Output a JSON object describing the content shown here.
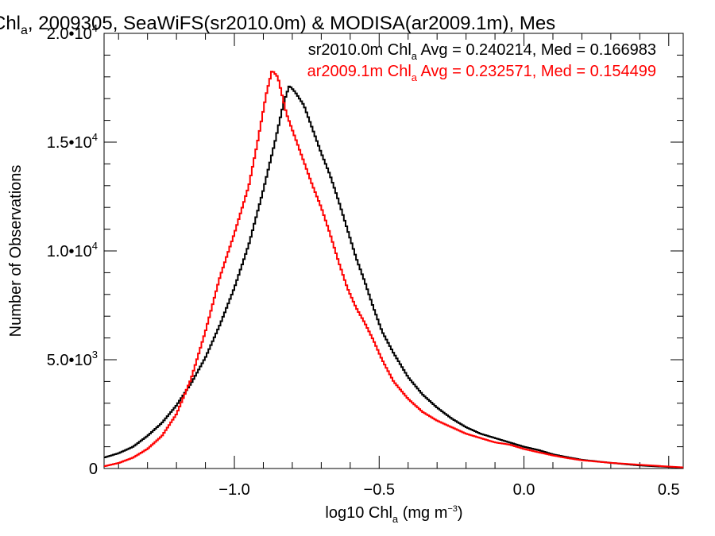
{
  "chart_data": {
    "type": "line",
    "title": {
      "prefix": "Chl",
      "prefix_sub": "a",
      "rest": ", 2009305, SeaWiFS(sr2010.0m) & MODISA(ar2009.1m), Mes"
    },
    "xlabel": {
      "main": "log10 Chl",
      "sub": "a",
      "unit_pre": " (mg m",
      "unit_sup": "−3",
      "unit_post": ")"
    },
    "ylabel": "Number of Observations",
    "xlim": [
      -1.45,
      0.55
    ],
    "ylim": [
      0,
      20000
    ],
    "grid": false,
    "legend_position": "top-right",
    "x_ticks": [
      {
        "value": -1.0,
        "label": "−1.0"
      },
      {
        "value": -0.5,
        "label": "−0.5"
      },
      {
        "value": 0.0,
        "label": "0.0"
      },
      {
        "value": 0.5,
        "label": "0.5"
      }
    ],
    "y_ticks": [
      {
        "value": 0,
        "mant": "0",
        "exp": ""
      },
      {
        "value": 5000,
        "mant": "5.0•10",
        "exp": "3"
      },
      {
        "value": 10000,
        "mant": "1.0•10",
        "exp": "4"
      },
      {
        "value": 15000,
        "mant": "1.5•10",
        "exp": "4"
      },
      {
        "value": 20000,
        "mant": "2.0•10",
        "exp": "4"
      }
    ],
    "series": [
      {
        "name": "sr2010.0m",
        "legend": {
          "pre": "sr2010.0m Chl",
          "sub": "a",
          "post": " Avg = 0.240214, Med = 0.166983"
        },
        "color": "#000000",
        "points": [
          [
            -1.45,
            500
          ],
          [
            -1.4,
            700
          ],
          [
            -1.35,
            1000
          ],
          [
            -1.3,
            1500
          ],
          [
            -1.25,
            2100
          ],
          [
            -1.2,
            2900
          ],
          [
            -1.15,
            3900
          ],
          [
            -1.1,
            5100
          ],
          [
            -1.05,
            6600
          ],
          [
            -1.0,
            8300
          ],
          [
            -0.95,
            10300
          ],
          [
            -0.9,
            12800
          ],
          [
            -0.86,
            15000
          ],
          [
            -0.83,
            16800
          ],
          [
            -0.81,
            17600
          ],
          [
            -0.79,
            17300
          ],
          [
            -0.76,
            16700
          ],
          [
            -0.73,
            15600
          ],
          [
            -0.7,
            14500
          ],
          [
            -0.67,
            13500
          ],
          [
            -0.64,
            12300
          ],
          [
            -0.61,
            11000
          ],
          [
            -0.58,
            9700
          ],
          [
            -0.55,
            8600
          ],
          [
            -0.52,
            7400
          ],
          [
            -0.49,
            6300
          ],
          [
            -0.45,
            5300
          ],
          [
            -0.4,
            4200
          ],
          [
            -0.35,
            3400
          ],
          [
            -0.3,
            2800
          ],
          [
            -0.25,
            2300
          ],
          [
            -0.2,
            1900
          ],
          [
            -0.15,
            1600
          ],
          [
            -0.1,
            1400
          ],
          [
            -0.05,
            1200
          ],
          [
            0.0,
            1000
          ],
          [
            0.05,
            850
          ],
          [
            0.1,
            650
          ],
          [
            0.15,
            520
          ],
          [
            0.2,
            400
          ],
          [
            0.3,
            260
          ],
          [
            0.4,
            140
          ],
          [
            0.5,
            70
          ],
          [
            0.55,
            40
          ]
        ]
      },
      {
        "name": "ar2009.1m",
        "legend": {
          "pre": "ar2009.1m Chl",
          "sub": "a",
          "post": " Avg = 0.232571, Med = 0.154499"
        },
        "color": "#ff0000",
        "points": [
          [
            -1.45,
            100
          ],
          [
            -1.4,
            250
          ],
          [
            -1.35,
            500
          ],
          [
            -1.3,
            900
          ],
          [
            -1.25,
            1500
          ],
          [
            -1.2,
            2500
          ],
          [
            -1.15,
            4100
          ],
          [
            -1.1,
            6300
          ],
          [
            -1.05,
            8800
          ],
          [
            -1.0,
            10800
          ],
          [
            -0.95,
            13000
          ],
          [
            -0.92,
            15000
          ],
          [
            -0.89,
            17200
          ],
          [
            -0.87,
            18300
          ],
          [
            -0.85,
            18000
          ],
          [
            -0.82,
            16300
          ],
          [
            -0.79,
            15200
          ],
          [
            -0.76,
            14100
          ],
          [
            -0.73,
            13000
          ],
          [
            -0.7,
            12000
          ],
          [
            -0.67,
            10800
          ],
          [
            -0.64,
            9500
          ],
          [
            -0.61,
            8300
          ],
          [
            -0.58,
            7400
          ],
          [
            -0.55,
            6700
          ],
          [
            -0.52,
            5900
          ],
          [
            -0.49,
            5000
          ],
          [
            -0.45,
            4000
          ],
          [
            -0.4,
            3200
          ],
          [
            -0.35,
            2600
          ],
          [
            -0.3,
            2200
          ],
          [
            -0.25,
            1900
          ],
          [
            -0.2,
            1600
          ],
          [
            -0.15,
            1400
          ],
          [
            -0.1,
            1200
          ],
          [
            -0.05,
            1100
          ],
          [
            0.0,
            900
          ],
          [
            0.05,
            750
          ],
          [
            0.1,
            600
          ],
          [
            0.15,
            480
          ],
          [
            0.2,
            380
          ],
          [
            0.3,
            260
          ],
          [
            0.4,
            170
          ],
          [
            0.5,
            90
          ],
          [
            0.55,
            50
          ]
        ]
      }
    ]
  }
}
